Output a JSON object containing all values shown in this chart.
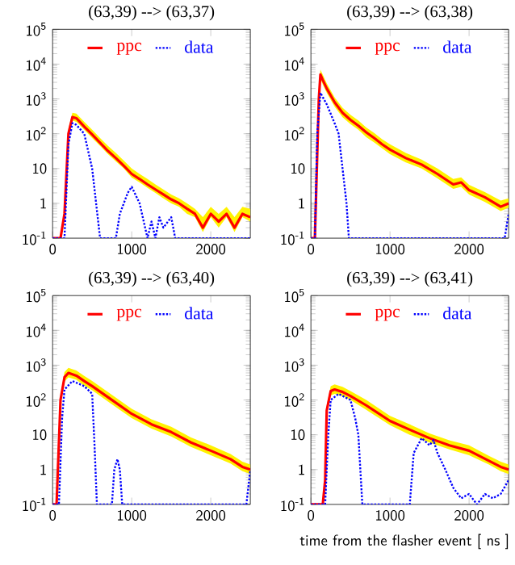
{
  "chart_data": [
    {
      "type": "line",
      "title": "(63,39) --> (63,37)",
      "log": true,
      "legend": "top",
      "xlim": [
        0,
        2500
      ],
      "ylim": [
        0.1,
        100000
      ],
      "xticks": [
        0,
        1000,
        2000
      ],
      "yticks": [
        {
          "value": 0.1,
          "label": "10$^{-1}$"
        },
        1,
        10,
        {
          "value": 100,
          "label": "10$^{2}$"
        },
        {
          "value": 1000,
          "label": "10$^{3}$"
        },
        {
          "value": 10000,
          "label": "10$^{4}$"
        },
        {
          "value": 100000,
          "label": "10$^{5}$"
        }
      ],
      "series": [
        {
          "name": "ppc",
          "color": "#ff0000",
          "line_style": "solid",
          "x": [
            0,
            100,
            150,
            200,
            250,
            300,
            400,
            500,
            600,
            700,
            800,
            900,
            1000,
            1100,
            1200,
            1300,
            1400,
            1500,
            1600,
            1700,
            1800,
            1900,
            2000,
            2100,
            2200,
            2300,
            2400,
            2500
          ],
          "values": [
            0.1,
            0.1,
            0.5,
            100,
            300,
            280,
            160,
            95,
            55,
            32,
            20,
            12,
            7,
            5,
            3.5,
            2.5,
            1.8,
            1.3,
            1,
            0.7,
            0.5,
            0.2,
            0.5,
            0.3,
            0.5,
            0.2,
            0.5,
            0.4
          ],
          "upper": [
            0.1,
            0.1,
            0.8,
            140,
            400,
            380,
            220,
            130,
            75,
            45,
            28,
            17,
            10,
            7,
            5,
            3.5,
            2.5,
            1.8,
            1.4,
            1,
            0.7,
            0.4,
            0.8,
            0.5,
            0.8,
            0.4,
            0.8,
            0.7
          ],
          "lower": [
            0.1,
            0.1,
            0.4,
            80,
            240,
            220,
            130,
            75,
            45,
            26,
            16,
            10,
            5.5,
            4,
            2.8,
            2,
            1.4,
            1,
            0.8,
            0.5,
            0.4,
            0.15,
            0.4,
            0.2,
            0.4,
            0.15,
            0.4,
            0.3
          ]
        },
        {
          "name": "data",
          "color": "#0000ff",
          "line_style": "dotted",
          "x": [
            0,
            150,
            200,
            250,
            300,
            400,
            500,
            550,
            600,
            800,
            850,
            950,
            1000,
            1100,
            1200,
            1250,
            1300,
            1350,
            1400,
            1500,
            1550,
            2500
          ],
          "values": [
            0.1,
            0.1,
            50,
            200,
            180,
            100,
            10,
            1,
            0.1,
            0.1,
            0.5,
            2,
            3,
            1,
            0.1,
            0.3,
            0.1,
            0.4,
            0.2,
            0.4,
            0.1,
            0.1
          ]
        }
      ]
    },
    {
      "type": "line",
      "title": "(63,39) --> (63,38)",
      "log": true,
      "legend": "top",
      "xlim": [
        0,
        2500
      ],
      "ylim": [
        0.1,
        100000
      ],
      "xticks": [
        0,
        1000,
        2000
      ],
      "yticks": [
        {
          "value": 0.1,
          "label": "10$^{-1}$"
        },
        1,
        10,
        {
          "value": 100,
          "label": "10$^{2}$"
        },
        {
          "value": 1000,
          "label": "10$^{3}$"
        },
        {
          "value": 10000,
          "label": "10$^{4}$"
        },
        {
          "value": 100000,
          "label": "10$^{5}$"
        }
      ],
      "series": [
        {
          "name": "ppc",
          "color": "#ff0000",
          "line_style": "solid",
          "x": [
            0,
            50,
            100,
            120,
            150,
            200,
            300,
            400,
            500,
            600,
            700,
            800,
            900,
            1000,
            1200,
            1400,
            1600,
            1800,
            1900,
            2000,
            2200,
            2400,
            2500
          ],
          "values": [
            0.1,
            0.1,
            1000,
            5000,
            3500,
            2000,
            800,
            400,
            250,
            170,
            110,
            75,
            50,
            35,
            20,
            13,
            7,
            3.5,
            4,
            2.4,
            1.5,
            0.8,
            1
          ],
          "upper": [
            0.1,
            0.1,
            1400,
            7000,
            5000,
            2800,
            1100,
            560,
            350,
            240,
            150,
            105,
            70,
            50,
            28,
            18,
            10,
            5,
            5.6,
            3.4,
            2.1,
            1.2,
            1.4
          ],
          "lower": [
            0.1,
            0.1,
            750,
            3800,
            2600,
            1500,
            600,
            300,
            190,
            130,
            80,
            56,
            38,
            26,
            15,
            10,
            5.2,
            2.6,
            3,
            1.8,
            1.1,
            0.6,
            0.75
          ]
        },
        {
          "name": "data",
          "color": "#0000ff",
          "line_style": "dotted",
          "x": [
            0,
            50,
            80,
            120,
            200,
            300,
            350,
            400,
            450,
            480,
            2450,
            2500
          ],
          "values": [
            0.1,
            0.1,
            100,
            1500,
            700,
            200,
            100,
            10,
            1,
            0.1,
            0.1,
            0.5
          ]
        }
      ]
    },
    {
      "type": "line",
      "title": "(63,39) --> (63,40)",
      "log": true,
      "legend": "top",
      "xlim": [
        0,
        2500
      ],
      "ylim": [
        0.1,
        100000
      ],
      "xticks": [
        0,
        1000,
        2000
      ],
      "yticks": [
        {
          "value": 0.1,
          "label": "10$^{-1}$"
        },
        1,
        10,
        {
          "value": 100,
          "label": "10$^{2}$"
        },
        {
          "value": 1000,
          "label": "10$^{3}$"
        },
        {
          "value": 10000,
          "label": "10$^{4}$"
        },
        {
          "value": 100000,
          "label": "10$^{5}$"
        }
      ],
      "series": [
        {
          "name": "ppc",
          "color": "#ff0000",
          "line_style": "solid",
          "x": [
            0,
            50,
            100,
            150,
            200,
            300,
            400,
            500,
            700,
            1000,
            1250,
            1500,
            1750,
            2000,
            2250,
            2400,
            2500
          ],
          "values": [
            0.1,
            0.1,
            100,
            450,
            600,
            500,
            350,
            250,
            120,
            40,
            20,
            12,
            6,
            3.5,
            2,
            1.2,
            1
          ],
          "upper": [
            0.1,
            0.1,
            140,
            630,
            840,
            700,
            490,
            350,
            170,
            56,
            28,
            17,
            8.4,
            5,
            2.8,
            1.7,
            1.4
          ],
          "lower": [
            0.1,
            0.1,
            75,
            340,
            450,
            380,
            260,
            190,
            90,
            30,
            15,
            9,
            4.5,
            2.6,
            1.5,
            0.9,
            0.75
          ]
        },
        {
          "name": "data",
          "color": "#0000ff",
          "line_style": "dotted",
          "x": [
            0,
            80,
            120,
            150,
            250,
            400,
            500,
            530,
            560,
            750,
            780,
            820,
            850,
            880,
            2450,
            2500
          ],
          "values": [
            0.1,
            0.1,
            30,
            200,
            350,
            250,
            150,
            5,
            0.1,
            0.1,
            1,
            2,
            1,
            0.1,
            0.1,
            1
          ]
        }
      ]
    },
    {
      "type": "line",
      "title": "(63,39) --> (63,41)",
      "xlabel": "time from the flasher event [ ns ]",
      "log": true,
      "legend": "top",
      "xlim": [
        0,
        2500
      ],
      "ylim": [
        0.1,
        100000
      ],
      "xticks": [
        0,
        1000,
        2000
      ],
      "yticks": [
        {
          "value": 0.1,
          "label": "10$^{-1}$"
        },
        1,
        10,
        {
          "value": 100,
          "label": "10$^{2}$"
        },
        {
          "value": 1000,
          "label": "10$^{3}$"
        },
        {
          "value": 10000,
          "label": "10$^{4}$"
        },
        {
          "value": 100000,
          "label": "10$^{5}$"
        }
      ],
      "series": [
        {
          "name": "ppc",
          "color": "#ff0000",
          "line_style": "solid",
          "x": [
            0,
            150,
            180,
            200,
            250,
            300,
            400,
            500,
            700,
            1000,
            1250,
            1500,
            1750,
            2000,
            2250,
            2400,
            2500
          ],
          "values": [
            0.1,
            0.1,
            0.5,
            50,
            180,
            200,
            170,
            130,
            70,
            25,
            14,
            8,
            5,
            3.5,
            1.8,
            1.2,
            1
          ],
          "upper": [
            0.1,
            0.1,
            0.8,
            70,
            250,
            280,
            240,
            180,
            100,
            35,
            20,
            11,
            7,
            5,
            2.5,
            1.7,
            1.4
          ],
          "lower": [
            0.1,
            0.1,
            0.4,
            38,
            135,
            150,
            130,
            100,
            52,
            19,
            10,
            6,
            3.8,
            2.6,
            1.4,
            0.9,
            0.75
          ]
        },
        {
          "name": "data",
          "color": "#0000ff",
          "line_style": "dotted",
          "x": [
            0,
            180,
            220,
            250,
            350,
            500,
            560,
            600,
            650,
            1200,
            1250,
            1300,
            1400,
            1500,
            1550,
            1600,
            1700,
            1800,
            1900,
            2000,
            2100,
            2200,
            2300,
            2400,
            2500
          ],
          "values": [
            0.1,
            0.1,
            10,
            100,
            150,
            100,
            30,
            10,
            0.1,
            0.1,
            0.1,
            3,
            8,
            5,
            7,
            3,
            1,
            0.3,
            0.15,
            0.2,
            0.1,
            0.2,
            0.15,
            0.2,
            0.5
          ]
        }
      ]
    }
  ]
}
